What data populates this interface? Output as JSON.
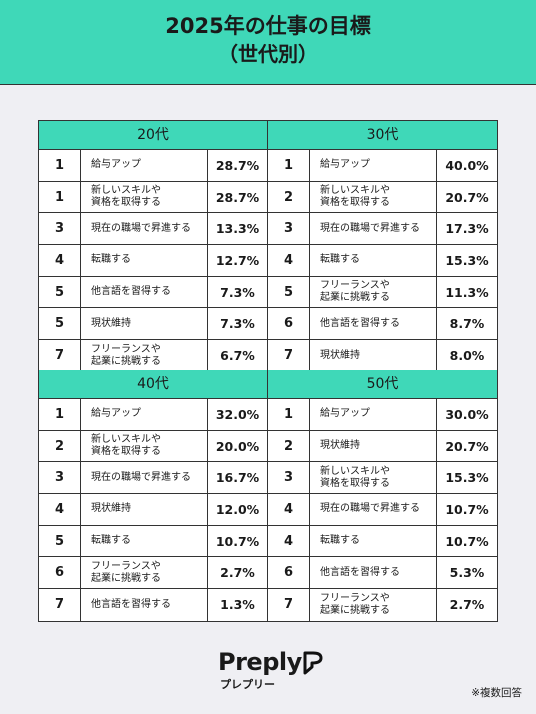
{
  "header": {
    "title": "2025年の仕事の目標",
    "subtitle": "（世代別）"
  },
  "tables": [
    {
      "heading": "20代",
      "rows": [
        [
          "1",
          "給与アップ",
          "28.7%"
        ],
        [
          "1",
          "新しいスキルや\n資格を取得する",
          "28.7%"
        ],
        [
          "3",
          "現在の職場で昇進する",
          "13.3%"
        ],
        [
          "4",
          "転職する",
          "12.7%"
        ],
        [
          "5",
          "他言語を習得する",
          "7.3%"
        ],
        [
          "5",
          "現状維持",
          "7.3%"
        ],
        [
          "7",
          "フリーランスや\n起業に挑戦する",
          "6.7%"
        ]
      ]
    },
    {
      "heading": "30代",
      "rows": [
        [
          "1",
          "給与アップ",
          "40.0%"
        ],
        [
          "2",
          "新しいスキルや\n資格を取得する",
          "20.7%"
        ],
        [
          "3",
          "現在の職場で昇進する",
          "17.3%"
        ],
        [
          "4",
          "転職する",
          "15.3%"
        ],
        [
          "5",
          "フリーランスや\n起業に挑戦する",
          "11.3%"
        ],
        [
          "6",
          "他言語を習得する",
          "8.7%"
        ],
        [
          "7",
          "現状維持",
          "8.0%"
        ]
      ]
    },
    {
      "heading": "40代",
      "rows": [
        [
          "1",
          "給与アップ",
          "32.0%"
        ],
        [
          "2",
          "新しいスキルや\n資格を取得する",
          "20.0%"
        ],
        [
          "3",
          "現在の職場で昇進する",
          "16.7%"
        ],
        [
          "4",
          "現状維持",
          "12.0%"
        ],
        [
          "5",
          "転職する",
          "10.7%"
        ],
        [
          "6",
          "フリーランスや\n起業に挑戦する",
          "2.7%"
        ],
        [
          "7",
          "他言語を習得する",
          "1.3%"
        ]
      ]
    },
    {
      "heading": "50代",
      "rows": [
        [
          "1",
          "給与アップ",
          "30.0%"
        ],
        [
          "2",
          "現状維持",
          "20.7%"
        ],
        [
          "3",
          "新しいスキルや\n資格を取得する",
          "15.3%"
        ],
        [
          "4",
          "現在の職場で昇進する",
          "10.7%"
        ],
        [
          "4",
          "転職する",
          "10.7%"
        ],
        [
          "6",
          "他言語を習得する",
          "5.3%"
        ],
        [
          "7",
          "フリーランスや\n起業に挑戦する",
          "2.7%"
        ]
      ]
    }
  ],
  "footer": {
    "logo": "Preply",
    "logo_kana": "プレプリー",
    "note": "※複数回答"
  }
}
